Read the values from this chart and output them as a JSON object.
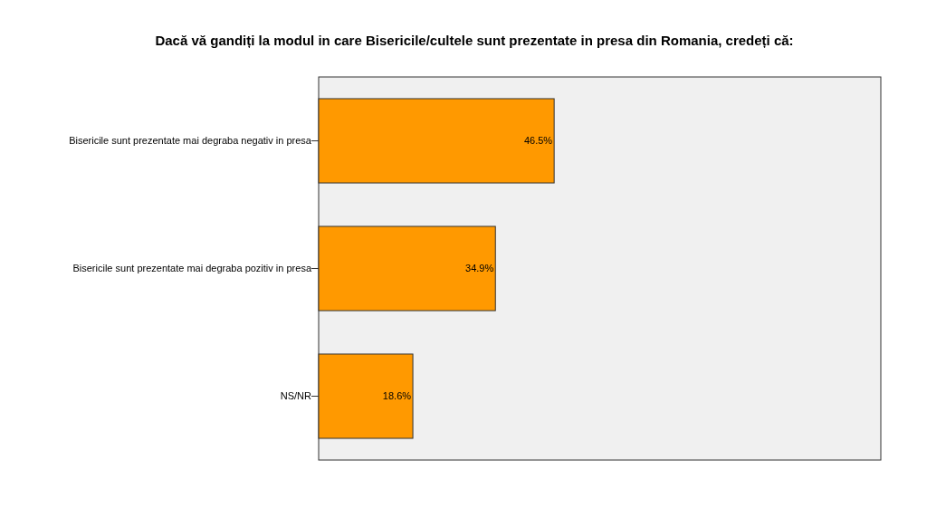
{
  "chart_data": {
    "type": "bar",
    "orientation": "horizontal",
    "title": "Dacă vă gandiți la modul in care Bisericile/cultele sunt prezentate in presa din Romania, credeți că:",
    "categories": [
      "Bisericile sunt prezentate mai degraba negativ in presa",
      "Bisericile sunt prezentate mai degraba pozitiv in presa",
      "NS/NR"
    ],
    "values": [
      46.5,
      34.9,
      18.6
    ],
    "value_labels": [
      "46.5%",
      "34.9%",
      "18.6%"
    ],
    "color": "#ff9900",
    "xlim": [
      0,
      111
    ],
    "grid": false
  }
}
